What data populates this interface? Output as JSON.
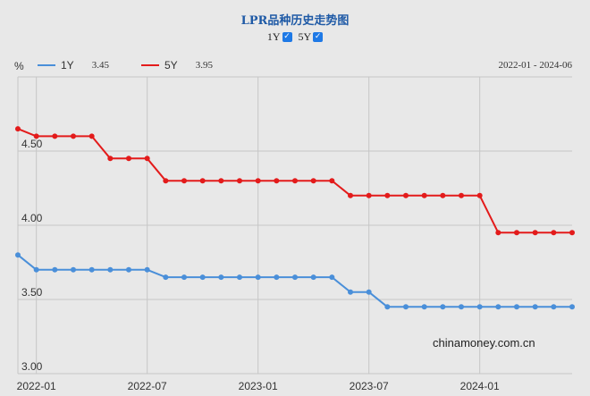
{
  "header": {
    "title": "LPR品种历史走势图",
    "toggles": [
      {
        "label": "1Y",
        "checked": true
      },
      {
        "label": "5Y",
        "checked": true
      }
    ]
  },
  "legend": {
    "unit": "%",
    "range": "2022-01 - 2024-06",
    "items": [
      {
        "name": "1Y",
        "value": "3.45",
        "color": "#4a8fd9"
      },
      {
        "name": "5Y",
        "value": "3.95",
        "color": "#e31b1b"
      }
    ]
  },
  "watermark": "chinamoney.com.cn",
  "chart_data": {
    "type": "line",
    "x": [
      "2021-12",
      "2022-01",
      "2022-02",
      "2022-03",
      "2022-04",
      "2022-05",
      "2022-06",
      "2022-07",
      "2022-08",
      "2022-09",
      "2022-10",
      "2022-11",
      "2022-12",
      "2023-01",
      "2023-02",
      "2023-03",
      "2023-04",
      "2023-05",
      "2023-06",
      "2023-07",
      "2023-08",
      "2023-09",
      "2023-10",
      "2023-11",
      "2023-12",
      "2024-01",
      "2024-02",
      "2024-03",
      "2024-04",
      "2024-05",
      "2024-06"
    ],
    "series": [
      {
        "name": "1Y",
        "color": "#4a8fd9",
        "values": [
          3.8,
          3.7,
          3.7,
          3.7,
          3.7,
          3.7,
          3.7,
          3.7,
          3.65,
          3.65,
          3.65,
          3.65,
          3.65,
          3.65,
          3.65,
          3.65,
          3.65,
          3.65,
          3.55,
          3.55,
          3.45,
          3.45,
          3.45,
          3.45,
          3.45,
          3.45,
          3.45,
          3.45,
          3.45,
          3.45,
          3.45
        ]
      },
      {
        "name": "5Y",
        "color": "#e31b1b",
        "values": [
          4.65,
          4.6,
          4.6,
          4.6,
          4.6,
          4.45,
          4.45,
          4.45,
          4.3,
          4.3,
          4.3,
          4.3,
          4.3,
          4.3,
          4.3,
          4.3,
          4.3,
          4.3,
          4.2,
          4.2,
          4.2,
          4.2,
          4.2,
          4.2,
          4.2,
          4.2,
          3.95,
          3.95,
          3.95,
          3.95,
          3.95
        ]
      }
    ],
    "ylim": [
      3.0,
      5.0
    ],
    "yticks": [
      "3.00",
      "3.50",
      "4.00",
      "4.50"
    ],
    "xticks": [
      {
        "label": "2022-01",
        "x": "2022-01"
      },
      {
        "label": "2022-07",
        "x": "2022-07"
      },
      {
        "label": "2023-01",
        "x": "2023-01"
      },
      {
        "label": "2023-07",
        "x": "2023-07"
      },
      {
        "label": "2024-01",
        "x": "2024-01"
      }
    ],
    "grid": true
  }
}
